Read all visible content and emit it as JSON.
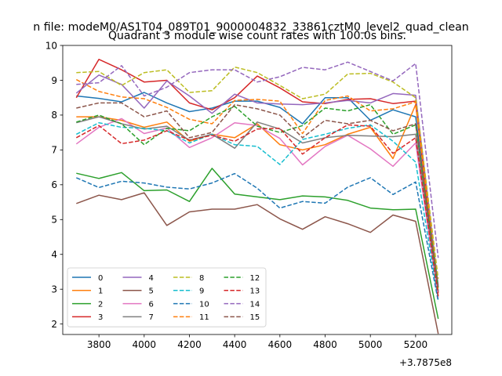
{
  "suptitle": "n file: modeM0/AS1T04_089T01_9000004832_33861cztM0_level2_quad_clean",
  "chart_data": {
    "type": "line",
    "title": "Quadrant 3 module wise count rates with 100.0s bins.",
    "xlabel": "",
    "ylabel": "",
    "offset_label": "+3.7875e8",
    "x": [
      3700,
      3800,
      3900,
      4000,
      4100,
      4200,
      4300,
      4400,
      4500,
      4600,
      4700,
      4800,
      4900,
      5000,
      5100,
      5200,
      5300
    ],
    "xlim": [
      3640,
      5360
    ],
    "ylim": [
      1.7,
      10.0
    ],
    "xticks": [
      3800,
      4000,
      4200,
      4400,
      4600,
      4800,
      5000,
      5200
    ],
    "xtick_labels": [
      "3800",
      "4000",
      "4200",
      "4400",
      "4600",
      "4800",
      "5000",
      "5200"
    ],
    "yticks": [
      2,
      3,
      4,
      5,
      6,
      7,
      8,
      9,
      10
    ],
    "ytick_labels": [
      "2",
      "3",
      "4",
      "5",
      "6",
      "7",
      "8",
      "9",
      "10"
    ],
    "legend_position": "lower-left",
    "series": [
      {
        "name": "0",
        "color": "#1f77b4",
        "dash": "solid",
        "values": [
          8.55,
          8.48,
          8.38,
          8.65,
          8.35,
          8.1,
          8.2,
          8.4,
          8.4,
          8.22,
          7.75,
          8.5,
          8.5,
          7.85,
          8.15,
          7.95,
          2.95
        ]
      },
      {
        "name": "1",
        "color": "#ff7f0e",
        "dash": "solid",
        "values": [
          7.95,
          7.95,
          7.85,
          7.65,
          7.8,
          7.25,
          7.45,
          7.35,
          7.75,
          7.15,
          7.0,
          7.15,
          7.45,
          7.65,
          6.75,
          8.3,
          2.9
        ]
      },
      {
        "name": "2",
        "color": "#2ca02c",
        "dash": "solid",
        "values": [
          6.33,
          6.18,
          6.35,
          5.83,
          5.85,
          5.52,
          6.47,
          5.73,
          5.65,
          5.57,
          5.68,
          5.65,
          5.55,
          5.33,
          5.28,
          5.3,
          2.15
        ]
      },
      {
        "name": "3",
        "color": "#d62728",
        "dash": "solid",
        "values": [
          8.5,
          9.6,
          9.3,
          8.95,
          9.0,
          8.35,
          8.15,
          8.5,
          9.12,
          8.78,
          8.38,
          8.33,
          8.45,
          8.47,
          8.33,
          8.4,
          2.9
        ]
      },
      {
        "name": "4",
        "color": "#9467bd",
        "dash": "solid",
        "values": [
          8.63,
          9.15,
          8.88,
          8.2,
          8.98,
          8.55,
          8.05,
          8.6,
          8.35,
          8.32,
          8.3,
          8.35,
          8.42,
          8.35,
          8.62,
          8.57,
          3.1
        ]
      },
      {
        "name": "5",
        "color": "#8c564b",
        "dash": "solid",
        "values": [
          5.46,
          5.7,
          5.57,
          5.77,
          4.83,
          5.22,
          5.3,
          5.3,
          5.43,
          5.02,
          4.72,
          5.08,
          4.88,
          4.63,
          5.13,
          4.95,
          1.72
        ]
      },
      {
        "name": "6",
        "color": "#e377c2",
        "dash": "solid",
        "values": [
          7.17,
          7.65,
          7.9,
          7.47,
          7.63,
          7.07,
          7.35,
          7.78,
          7.7,
          7.33,
          6.57,
          7.1,
          7.42,
          7.03,
          6.53,
          7.2,
          2.75
        ]
      },
      {
        "name": "7",
        "color": "#7f7f7f",
        "dash": "solid",
        "values": [
          7.78,
          7.95,
          7.75,
          7.6,
          7.68,
          7.28,
          7.45,
          7.05,
          7.8,
          7.6,
          7.2,
          7.35,
          7.42,
          7.4,
          7.38,
          7.45,
          2.95
        ]
      },
      {
        "name": "8",
        "color": "#bcbd22",
        "dash": "dashed",
        "values": [
          9.22,
          9.25,
          8.85,
          9.22,
          9.3,
          8.65,
          8.7,
          9.38,
          9.22,
          8.85,
          8.47,
          8.6,
          9.18,
          9.2,
          8.95,
          8.5,
          3.3
        ]
      },
      {
        "name": "9",
        "color": "#17becf",
        "dash": "dashed",
        "values": [
          7.45,
          7.78,
          7.65,
          7.62,
          7.55,
          7.2,
          7.45,
          7.15,
          7.1,
          6.58,
          7.3,
          7.45,
          7.62,
          7.72,
          7.25,
          6.65,
          2.7
        ]
      },
      {
        "name": "10",
        "color": "#1f77b4",
        "dash": "dashed",
        "values": [
          6.2,
          5.92,
          6.1,
          6.05,
          5.93,
          5.88,
          6.05,
          6.32,
          5.9,
          5.33,
          5.52,
          5.47,
          5.93,
          6.2,
          5.72,
          6.08,
          2.65
        ]
      },
      {
        "name": "11",
        "color": "#ff7f0e",
        "dash": "dashed",
        "values": [
          9.02,
          8.68,
          8.52,
          8.47,
          8.22,
          7.88,
          7.75,
          8.42,
          8.45,
          8.4,
          7.47,
          8.42,
          8.55,
          8.12,
          8.18,
          8.38,
          3.0
        ]
      },
      {
        "name": "12",
        "color": "#2ca02c",
        "dash": "dashed",
        "values": [
          7.8,
          8.0,
          7.75,
          7.15,
          7.62,
          7.55,
          7.95,
          8.25,
          7.68,
          7.5,
          7.7,
          8.2,
          8.12,
          8.3,
          7.45,
          7.72,
          3.05
        ]
      },
      {
        "name": "13",
        "color": "#d62728",
        "dash": "dashed",
        "values": [
          7.35,
          7.7,
          7.18,
          7.28,
          7.55,
          7.28,
          7.42,
          7.25,
          7.6,
          7.62,
          6.88,
          7.35,
          7.72,
          7.68,
          6.9,
          7.35,
          2.8
        ]
      },
      {
        "name": "14",
        "color": "#9467bd",
        "dash": "dashed",
        "values": [
          8.88,
          8.93,
          9.42,
          8.55,
          8.8,
          9.22,
          9.3,
          9.3,
          8.95,
          9.1,
          9.37,
          9.3,
          9.52,
          9.25,
          8.98,
          9.48,
          3.9
        ]
      },
      {
        "name": "15",
        "color": "#8c564b",
        "dash": "dashed",
        "values": [
          8.2,
          8.35,
          8.35,
          7.95,
          8.12,
          7.35,
          7.5,
          8.3,
          8.18,
          8.0,
          7.35,
          7.85,
          7.75,
          7.85,
          7.55,
          7.75,
          3.05
        ]
      }
    ]
  }
}
